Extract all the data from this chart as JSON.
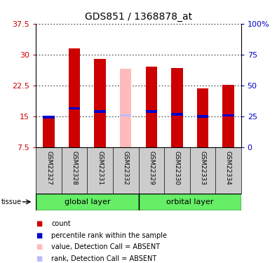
{
  "title": "GDS851 / 1368878_at",
  "samples": [
    "GSM22327",
    "GSM22328",
    "GSM22331",
    "GSM22332",
    "GSM22329",
    "GSM22330",
    "GSM22333",
    "GSM22334"
  ],
  "group_labels": [
    "global layer",
    "orbital layer"
  ],
  "absent": [
    false,
    false,
    false,
    true,
    false,
    false,
    false,
    false
  ],
  "bar_values": [
    14.5,
    31.5,
    29.0,
    26.5,
    27.0,
    26.8,
    21.8,
    22.7
  ],
  "rank_values": [
    14.8,
    17.0,
    16.2,
    15.2,
    16.2,
    15.5,
    15.0,
    15.3
  ],
  "ymin": 7.5,
  "ymax": 37.5,
  "yticks": [
    7.5,
    15.0,
    22.5,
    30.0,
    37.5
  ],
  "right_yticks": [
    0,
    25,
    50,
    75,
    100
  ],
  "bar_color": "#cc0000",
  "rank_color": "#0000cc",
  "absent_bar_color": "#ffbbbb",
  "absent_rank_color": "#bbbbff",
  "bg_color": "#ffffff",
  "label_gray": "#cccccc",
  "tissue_green": "#66ee66",
  "legend_items": [
    {
      "color": "#cc0000",
      "label": "count"
    },
    {
      "color": "#0000cc",
      "label": "percentile rank within the sample"
    },
    {
      "color": "#ffbbbb",
      "label": "value, Detection Call = ABSENT"
    },
    {
      "color": "#bbbbff",
      "label": "rank, Detection Call = ABSENT"
    }
  ]
}
